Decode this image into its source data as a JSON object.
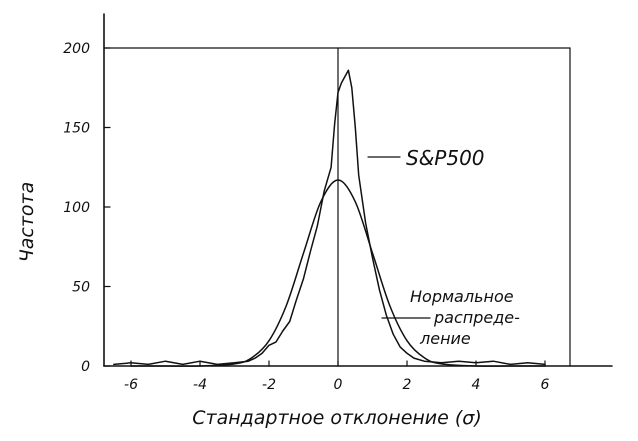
{
  "chart_data": {
    "type": "line",
    "title": "",
    "xlabel": "Стандартное отклонение (σ)",
    "ylabel": "Частота",
    "xlim": [
      -6.6,
      6.6
    ],
    "ylim": [
      0,
      200
    ],
    "x_ticks": [
      -6,
      -4,
      -2,
      0,
      2,
      4,
      6
    ],
    "x_tick_labels": [
      "-6",
      "-4",
      "-2",
      "0",
      "2",
      "4",
      "6"
    ],
    "y_ticks": [
      0,
      50,
      100,
      150,
      200
    ],
    "y_tick_labels": [
      "0",
      "50",
      "100",
      "150",
      "200"
    ],
    "grid": false,
    "series": [
      {
        "name": "S&P500",
        "x": [
          -6.5,
          -6.0,
          -5.5,
          -5.0,
          -4.5,
          -4.0,
          -3.5,
          -3.0,
          -2.6,
          -2.4,
          -2.2,
          -2.0,
          -1.8,
          -1.6,
          -1.4,
          -1.2,
          -1.0,
          -0.8,
          -0.6,
          -0.4,
          -0.2,
          -0.1,
          0.0,
          0.1,
          0.2,
          0.3,
          0.4,
          0.5,
          0.6,
          0.8,
          1.0,
          1.2,
          1.4,
          1.6,
          1.8,
          2.0,
          2.2,
          2.5,
          3.0,
          3.5,
          4.0,
          4.5,
          5.0,
          5.5,
          6.0
        ],
        "y": [
          1,
          2,
          1,
          3,
          1,
          3,
          1,
          2,
          3,
          5,
          8,
          13,
          15,
          22,
          28,
          42,
          55,
          72,
          88,
          110,
          125,
          152,
          172,
          178,
          182,
          186,
          175,
          150,
          120,
          90,
          68,
          48,
          32,
          20,
          12,
          8,
          5,
          3,
          2,
          3,
          2,
          3,
          1,
          2,
          1
        ]
      },
      {
        "name": "Нормальное распределение",
        "x": [
          -6,
          -5,
          -4,
          -3,
          -2.5,
          -2.0,
          -1.5,
          -1.0,
          -0.5,
          0.0,
          0.5,
          1.0,
          1.5,
          2.0,
          2.5,
          3.0,
          4.0,
          5.0,
          6.0
        ],
        "y": [
          0,
          0,
          0,
          1.3,
          5.2,
          15.9,
          38.0,
          71.0,
          103.3,
          117,
          103.3,
          71.0,
          38.0,
          15.9,
          5.2,
          1.3,
          0,
          0,
          0
        ]
      }
    ],
    "annotations": [
      "S&P500",
      "Нормальное",
      "распреде-",
      "ление"
    ]
  }
}
